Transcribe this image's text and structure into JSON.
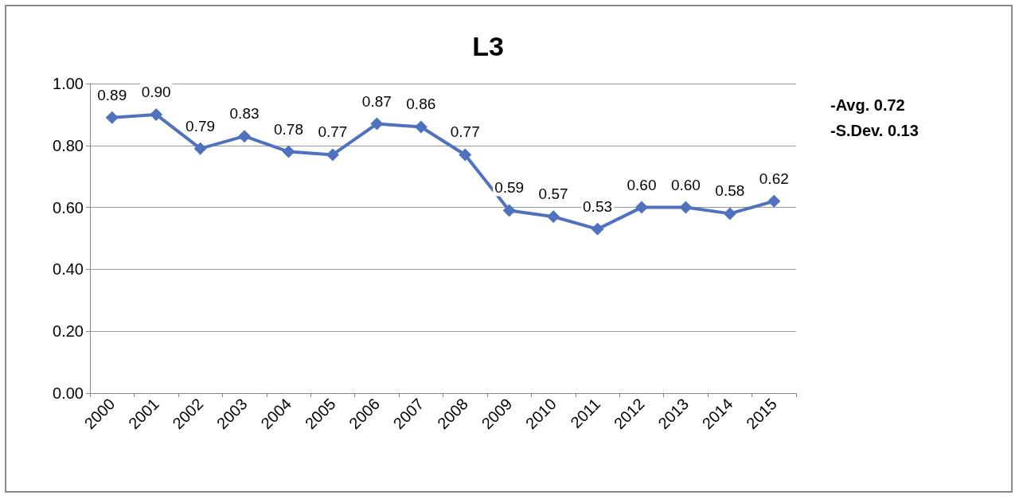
{
  "chart_data": {
    "type": "line",
    "title": "L3",
    "categories": [
      "2000",
      "2001",
      "2002",
      "2003",
      "2004",
      "2005",
      "2006",
      "2007",
      "2008",
      "2009",
      "2010",
      "2011",
      "2012",
      "2013",
      "2014",
      "2015"
    ],
    "series": [
      {
        "color": "#4f71be",
        "values": [
          0.89,
          0.9,
          0.79,
          0.83,
          0.78,
          0.77,
          0.87,
          0.86,
          0.77,
          0.59,
          0.57,
          0.53,
          0.6,
          0.6,
          0.58,
          0.62
        ],
        "value_labels": [
          "0.89",
          "0.90",
          "0.79",
          "0.83",
          "0.78",
          "0.77",
          "0.87",
          "0.86",
          "0.77",
          "0.59",
          "0.57",
          "0.53",
          "0.60",
          "0.60",
          "0.58",
          "0.62"
        ]
      }
    ],
    "ylim": [
      0,
      1
    ],
    "yticks": [
      {
        "value": 0,
        "label": "0.00"
      },
      {
        "value": 0.2,
        "label": "0.20"
      },
      {
        "value": 0.4,
        "label": "0.40"
      },
      {
        "value": 0.6,
        "label": "0.60"
      },
      {
        "value": 0.8,
        "label": "0.80"
      },
      {
        "value": 1,
        "label": "1.00"
      }
    ],
    "grid": "y",
    "marker": "diamond",
    "line_style": "solid",
    "annotations": [
      "-Avg. 0.72",
      "-S.Dev. 0.13"
    ]
  }
}
